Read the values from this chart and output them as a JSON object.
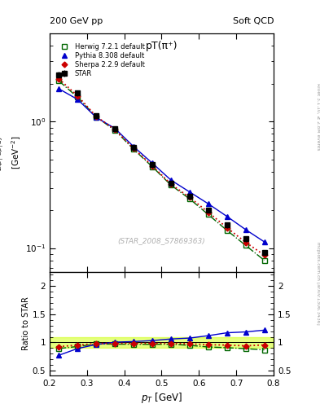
{
  "title": "pT(π⁺)",
  "top_left_label": "200 GeV pp",
  "top_right_label": "Soft QCD",
  "right_label_top": "Rivet 3.1.10, ≥ 2.8M events",
  "right_label_bot": "mcplots.cern.ch [arXiv:1306.3436]",
  "watermark": "(STAR_2008_S7869363)",
  "xlabel": "p$_T$ [GeV]",
  "ylabel": "$\\frac{1}{2\\pi p_T}\\frac{d^2N}{dp_T dy}$ [GeV$^{-2}$]",
  "xlim": [
    0.2,
    0.8
  ],
  "ylim_main": [
    0.065,
    5.0
  ],
  "ylim_ratio": [
    0.42,
    2.25
  ],
  "star_pt": [
    0.225,
    0.275,
    0.325,
    0.375,
    0.425,
    0.475,
    0.525,
    0.575,
    0.625,
    0.675,
    0.725,
    0.775
  ],
  "star_y": [
    2.35,
    1.68,
    1.12,
    0.88,
    0.625,
    0.455,
    0.325,
    0.258,
    0.2,
    0.152,
    0.118,
    0.092
  ],
  "star_yerr": [
    0.12,
    0.08,
    0.05,
    0.04,
    0.03,
    0.022,
    0.015,
    0.012,
    0.009,
    0.007,
    0.006,
    0.005
  ],
  "herwig_pt": [
    0.225,
    0.275,
    0.325,
    0.375,
    0.425,
    0.475,
    0.525,
    0.575,
    0.625,
    0.675,
    0.725,
    0.775
  ],
  "herwig_y": [
    2.1,
    1.56,
    1.09,
    0.855,
    0.605,
    0.44,
    0.315,
    0.245,
    0.184,
    0.138,
    0.105,
    0.08
  ],
  "pythia_pt": [
    0.225,
    0.275,
    0.325,
    0.375,
    0.425,
    0.475,
    0.525,
    0.575,
    0.625,
    0.675,
    0.725,
    0.775
  ],
  "pythia_y": [
    1.82,
    1.5,
    1.08,
    0.885,
    0.635,
    0.47,
    0.345,
    0.278,
    0.224,
    0.178,
    0.14,
    0.112
  ],
  "sherpa_pt": [
    0.225,
    0.275,
    0.325,
    0.375,
    0.425,
    0.475,
    0.525,
    0.575,
    0.625,
    0.675,
    0.725,
    0.775
  ],
  "sherpa_y": [
    2.18,
    1.6,
    1.1,
    0.865,
    0.615,
    0.448,
    0.32,
    0.252,
    0.192,
    0.145,
    0.111,
    0.088
  ],
  "star_color": "#000000",
  "herwig_color": "#006600",
  "pythia_color": "#0000cc",
  "sherpa_color": "#cc0000",
  "band_color": "#ccff00",
  "band_alpha": 0.5,
  "band_lo": 0.9,
  "band_hi": 1.1,
  "legend_labels": [
    "STAR",
    "Herwig 7.2.1 default",
    "Pythia 8.308 default",
    "Sherpa 2.2.9 default"
  ]
}
